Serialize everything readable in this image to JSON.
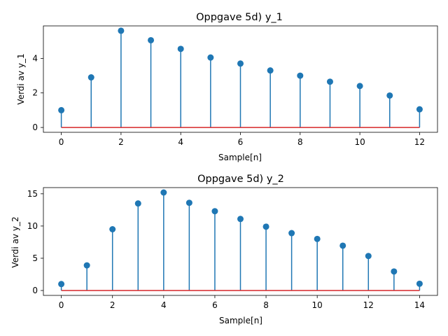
{
  "chart_data": [
    {
      "type": "stem",
      "title": "Oppgave 5d) y_1",
      "xlabel": "Sample[n]",
      "ylabel": "Verdi av y_1",
      "x": [
        0,
        1,
        2,
        3,
        4,
        5,
        6,
        7,
        8,
        9,
        10,
        11,
        12
      ],
      "values": [
        1.0,
        2.9,
        5.6,
        5.05,
        4.55,
        4.05,
        3.7,
        3.3,
        3.0,
        2.65,
        2.4,
        1.85,
        1.05
      ],
      "xlim": [
        -0.6,
        12.6
      ],
      "ylim": [
        -0.28,
        5.88
      ],
      "xticks": [
        0,
        2,
        4,
        6,
        8,
        10,
        12
      ],
      "yticks": [
        0,
        2,
        4
      ],
      "stem_color": "#1f77b4",
      "baseline_color": "#d62728"
    },
    {
      "type": "stem",
      "title": "Oppgave 5d) y_2",
      "xlabel": "Sample[n]",
      "ylabel": "Verdi av y_2",
      "x": [
        0,
        1,
        2,
        3,
        4,
        5,
        6,
        7,
        8,
        9,
        10,
        11,
        12,
        13,
        14
      ],
      "values": [
        1.0,
        3.9,
        9.5,
        13.5,
        15.2,
        13.6,
        12.3,
        11.1,
        9.9,
        8.9,
        8.0,
        6.95,
        5.35,
        2.95,
        1.05
      ],
      "xlim": [
        -0.7,
        14.7
      ],
      "ylim": [
        -0.76,
        15.96
      ],
      "xticks": [
        0,
        2,
        4,
        6,
        8,
        10,
        12,
        14
      ],
      "yticks": [
        0,
        5,
        10,
        15
      ],
      "stem_color": "#1f77b4",
      "baseline_color": "#d62728"
    }
  ]
}
